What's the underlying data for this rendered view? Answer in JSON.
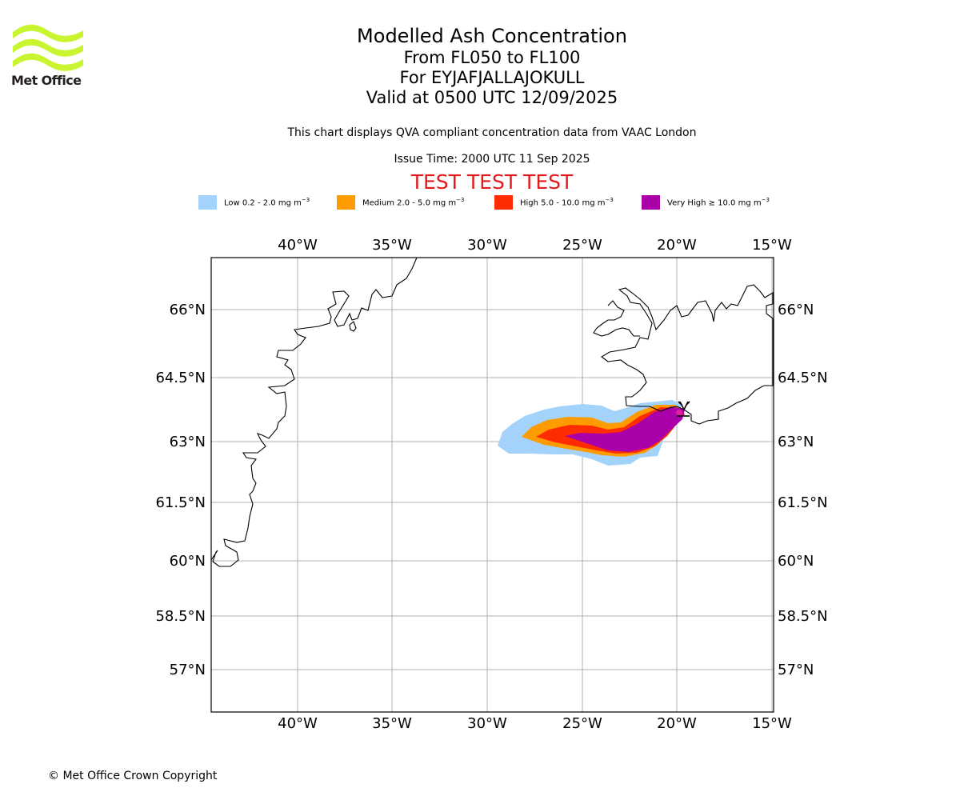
{
  "header": {
    "logo_text": "Met Office",
    "title": "Modelled Ash Concentration",
    "level_range": "From FL050 to FL100",
    "volcano_line": "For EYJAFJALLAJOKULL",
    "valid_line": "Valid at 0500 UTC 12/09/2025",
    "compliance_note": "This chart displays QVA compliant concentration data from VAAC London",
    "issue_time": "Issue Time: 2000 UTC 11 Sep 2025",
    "test_banner": "TEST TEST TEST"
  },
  "legend": [
    {
      "label": "Low 0.2 - 2.0 mg m",
      "color": "#a3d3fa"
    },
    {
      "label": "Medium 2.0 - 5.0 mg m",
      "color": "#fe9b00"
    },
    {
      "label": "High 5.0 - 10.0 mg m",
      "color": "#fe2c00"
    },
    {
      "label": "Very High ≥ 10.0 mg m",
      "color": "#aa00aa"
    }
  ],
  "legend_unit_exponent": "−3",
  "map": {
    "lon_range": [
      -44.6,
      -15
    ],
    "lat_range": [
      55.9,
      67.2
    ],
    "lon_ticks": [
      -40,
      -35,
      -30,
      -25,
      -20,
      -15
    ],
    "lat_ticks": [
      57,
      58.5,
      60,
      61.5,
      63,
      64.5,
      66
    ],
    "lon_tick_labels": [
      "40°W",
      "35°W",
      "30°W",
      "25°W",
      "20°W",
      "15°W"
    ],
    "lat_tick_labels": [
      "57°N",
      "58.5°N",
      "60°N",
      "61.5°N",
      "63°N",
      "64.5°N",
      "66°N"
    ],
    "gridlines": true,
    "volcano": {
      "name": "EYJAFJALLAJOKULL",
      "lat": 63.63,
      "lon": -19.62
    },
    "ash_plume_levels": [
      "Low",
      "Medium",
      "High",
      "Very High"
    ]
  },
  "footer": {
    "copyright": "© Met Office Crown Copyright"
  }
}
